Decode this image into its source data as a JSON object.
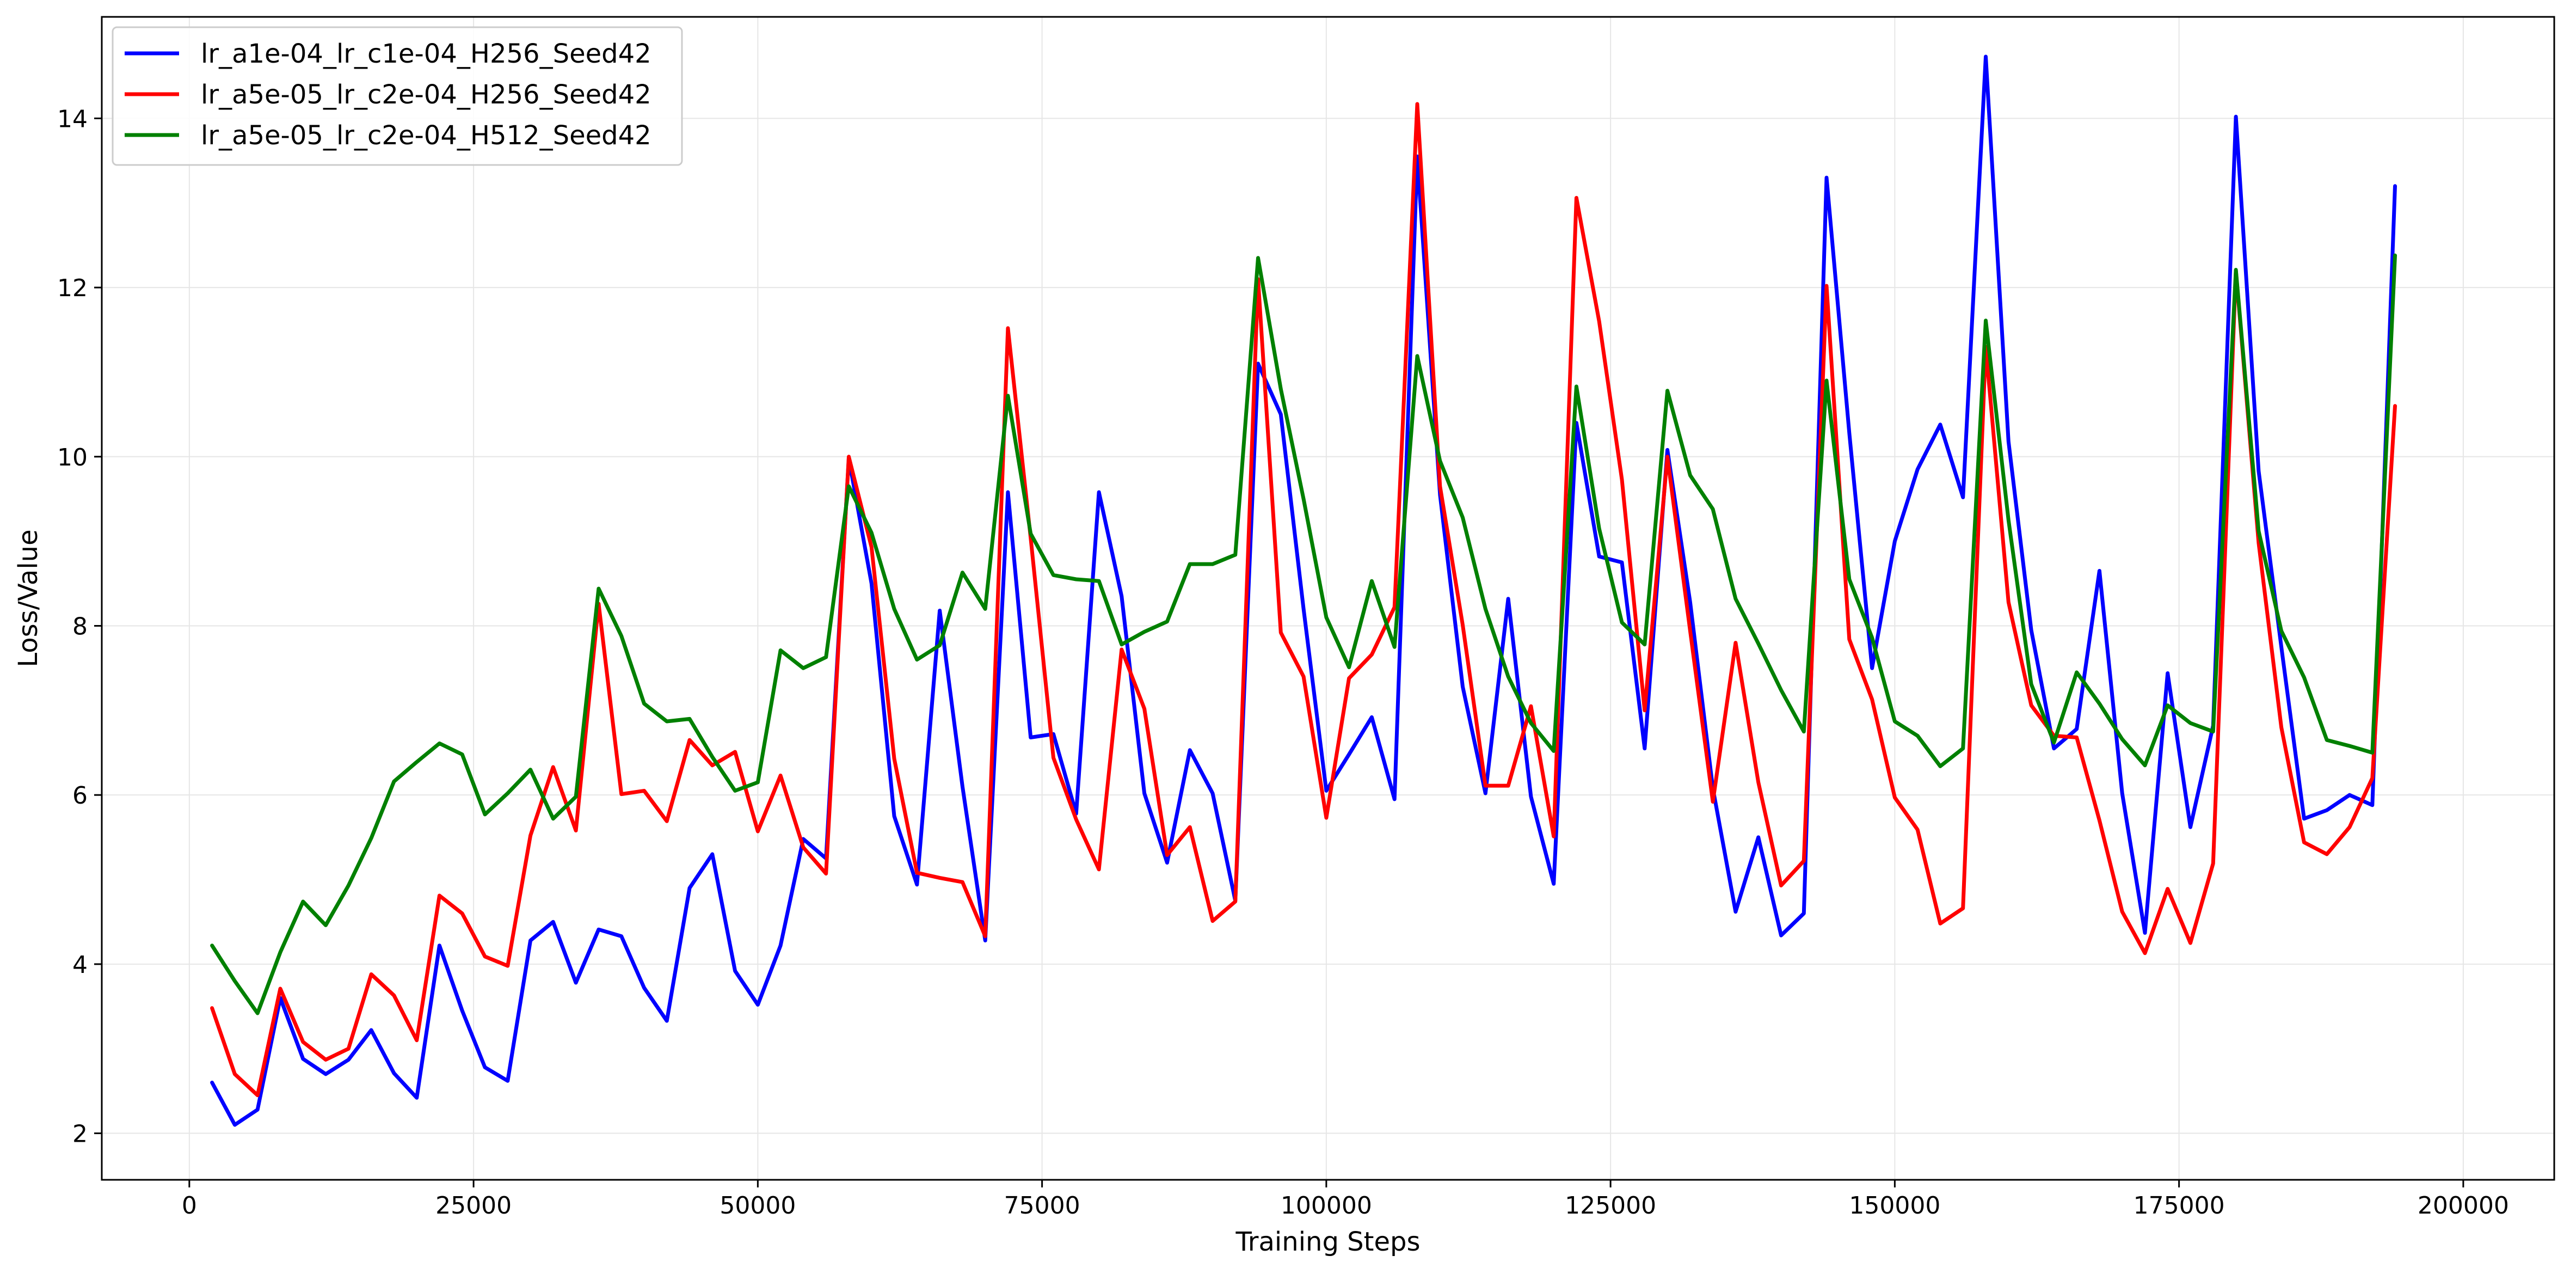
{
  "chart_data": {
    "type": "line",
    "title": "",
    "xlabel": "Training Steps",
    "ylabel": "Loss/Value",
    "xlim": [
      -7700,
      208000
    ],
    "ylim": [
      1.45,
      15.2
    ],
    "x_ticks": [
      0,
      25000,
      50000,
      75000,
      100000,
      125000,
      150000,
      175000,
      200000
    ],
    "y_ticks": [
      2,
      4,
      6,
      8,
      10,
      12,
      14
    ],
    "grid": true,
    "legend_position": "top-left",
    "x": [
      2000,
      4000,
      6000,
      8000,
      10000,
      12000,
      14000,
      16000,
      18000,
      20000,
      22000,
      24000,
      26000,
      28000,
      30000,
      32000,
      34000,
      36000,
      38000,
      40000,
      42000,
      44000,
      46000,
      48000,
      50000,
      52000,
      54000,
      56000,
      58000,
      60000,
      62000,
      64000,
      66000,
      68000,
      70000,
      72000,
      74000,
      76000,
      78000,
      80000,
      82000,
      84000,
      86000,
      88000,
      90000,
      92000,
      94000,
      96000,
      98000,
      100000,
      102000,
      104000,
      106000,
      108000,
      110000,
      112000,
      114000,
      116000,
      118000,
      120000,
      122000,
      124000,
      126000,
      128000,
      130000,
      132000,
      134000,
      136000,
      138000,
      140000,
      142000,
      144000,
      146000,
      148000,
      150000,
      152000,
      154000,
      156000,
      158000,
      160000,
      162000,
      164000,
      166000,
      168000,
      170000,
      172000,
      174000,
      176000,
      178000,
      180000,
      182000,
      184000,
      186000,
      188000,
      190000,
      192000,
      194000
    ],
    "series": [
      {
        "name": "lr_a1e-04_lr_c1e-04_H256_Seed42",
        "color": "#0000ff",
        "values": [
          2.6,
          2.1,
          2.28,
          3.6,
          2.88,
          2.7,
          2.87,
          3.22,
          2.71,
          2.42,
          4.22,
          3.45,
          2.78,
          2.62,
          4.28,
          4.5,
          3.78,
          4.41,
          4.33,
          3.72,
          3.33,
          4.9,
          5.3,
          3.92,
          3.52,
          4.22,
          5.48,
          5.25,
          9.98,
          8.5,
          5.75,
          4.94,
          8.18,
          6.1,
          4.28,
          9.58,
          6.68,
          6.72,
          5.78,
          9.58,
          8.35,
          6.02,
          5.2,
          6.53,
          6.02,
          4.75,
          11.1,
          10.5,
          8.2,
          6.05,
          6.48,
          6.92,
          5.95,
          13.55,
          9.55,
          7.28,
          6.02,
          8.32,
          5.98,
          4.95,
          10.4,
          8.82,
          8.75,
          6.55,
          10.08,
          8.28,
          6.08,
          4.62,
          5.5,
          4.34,
          4.6,
          13.3,
          10.28,
          7.5,
          9.0,
          9.85,
          10.38,
          9.52,
          14.73,
          10.18,
          7.95,
          6.55,
          6.78,
          8.65,
          6.02,
          4.37,
          7.44,
          5.62,
          6.82,
          14.02,
          9.83,
          7.75,
          5.72,
          5.82,
          6.0,
          5.88,
          13.2
        ]
      },
      {
        "name": "lr_a5e-05_lr_c2e-04_H256_Seed42",
        "color": "#ff0000",
        "values": [
          3.48,
          2.7,
          2.45,
          3.71,
          3.08,
          2.87,
          3.0,
          3.88,
          3.63,
          3.1,
          4.81,
          4.6,
          4.09,
          3.98,
          5.52,
          6.33,
          5.58,
          8.26,
          6.01,
          6.05,
          5.69,
          6.65,
          6.35,
          6.51,
          5.57,
          6.23,
          5.38,
          5.07,
          10.0,
          8.93,
          6.43,
          5.08,
          5.02,
          4.97,
          4.33,
          11.52,
          9.04,
          6.44,
          5.71,
          5.12,
          7.72,
          7.02,
          5.29,
          5.62,
          4.51,
          4.74,
          12.1,
          7.92,
          7.4,
          5.73,
          7.38,
          7.66,
          8.22,
          14.17,
          9.65,
          8.01,
          6.11,
          6.11,
          7.05,
          5.51,
          13.06,
          11.6,
          9.73,
          7.0,
          10.0,
          7.94,
          5.92,
          7.8,
          6.15,
          4.93,
          5.22,
          12.02,
          7.84,
          7.13,
          5.97,
          5.59,
          4.48,
          4.66,
          11.3,
          8.28,
          7.06,
          6.7,
          6.68,
          5.7,
          4.62,
          4.13,
          4.89,
          4.25,
          5.19,
          12.2,
          8.98,
          6.8,
          5.44,
          5.3,
          5.62,
          6.2,
          10.6
        ]
      },
      {
        "name": "lr_a5e-05_lr_c2e-04_H512_Seed42",
        "color": "#008000",
        "values": [
          4.22,
          3.8,
          3.42,
          4.14,
          4.74,
          4.46,
          4.93,
          5.49,
          6.16,
          6.39,
          6.61,
          6.48,
          5.77,
          6.02,
          6.3,
          5.72,
          5.98,
          8.44,
          7.88,
          7.08,
          6.87,
          6.9,
          6.45,
          6.05,
          6.15,
          7.71,
          7.5,
          7.63,
          9.65,
          9.1,
          8.2,
          7.6,
          7.77,
          8.63,
          8.2,
          10.72,
          9.09,
          8.6,
          8.55,
          8.53,
          7.78,
          7.93,
          8.05,
          8.73,
          8.73,
          8.84,
          12.35,
          10.8,
          9.5,
          8.1,
          7.51,
          8.53,
          7.75,
          11.19,
          9.95,
          9.28,
          8.2,
          7.4,
          6.85,
          6.52,
          10.83,
          9.15,
          8.04,
          7.78,
          10.78,
          9.78,
          9.38,
          8.32,
          7.79,
          7.24,
          6.75,
          10.9,
          8.55,
          7.86,
          6.87,
          6.7,
          6.34,
          6.55,
          11.61,
          9.25,
          7.31,
          6.62,
          7.45,
          7.08,
          6.66,
          6.35,
          7.06,
          6.85,
          6.75,
          12.21,
          9.12,
          7.94,
          7.39,
          6.65,
          6.58,
          6.5,
          12.38
        ]
      }
    ]
  }
}
